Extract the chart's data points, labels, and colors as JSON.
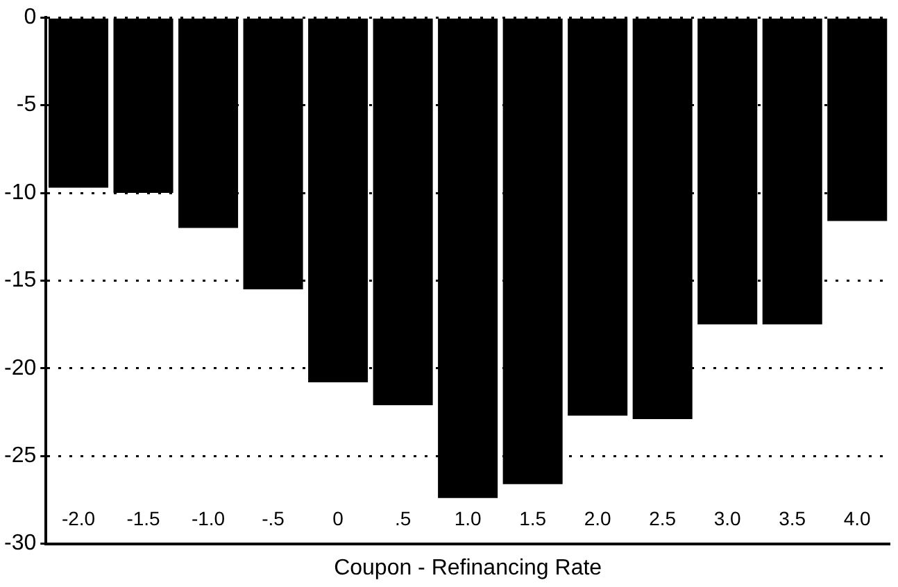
{
  "chart_data": {
    "type": "bar",
    "xlabel": "Coupon - Refinancing Rate",
    "categories": [
      "-2.0",
      "-1.5",
      "-1.0",
      "-.5",
      "0",
      ".5",
      "1.0",
      "1.5",
      "2.0",
      "2.5",
      "3.0",
      "3.5",
      "4.0"
    ],
    "values": [
      -9.7,
      -10.0,
      -12.0,
      -15.5,
      -20.8,
      -22.1,
      -27.4,
      -26.6,
      -22.7,
      -22.9,
      -17.5,
      -17.5,
      -11.6
    ],
    "color": "#000000",
    "ylim": [
      -30,
      0
    ],
    "yticks": [
      0,
      -5,
      -10,
      -15,
      -20,
      -25,
      -30
    ],
    "grid": "y",
    "legend": false
  }
}
